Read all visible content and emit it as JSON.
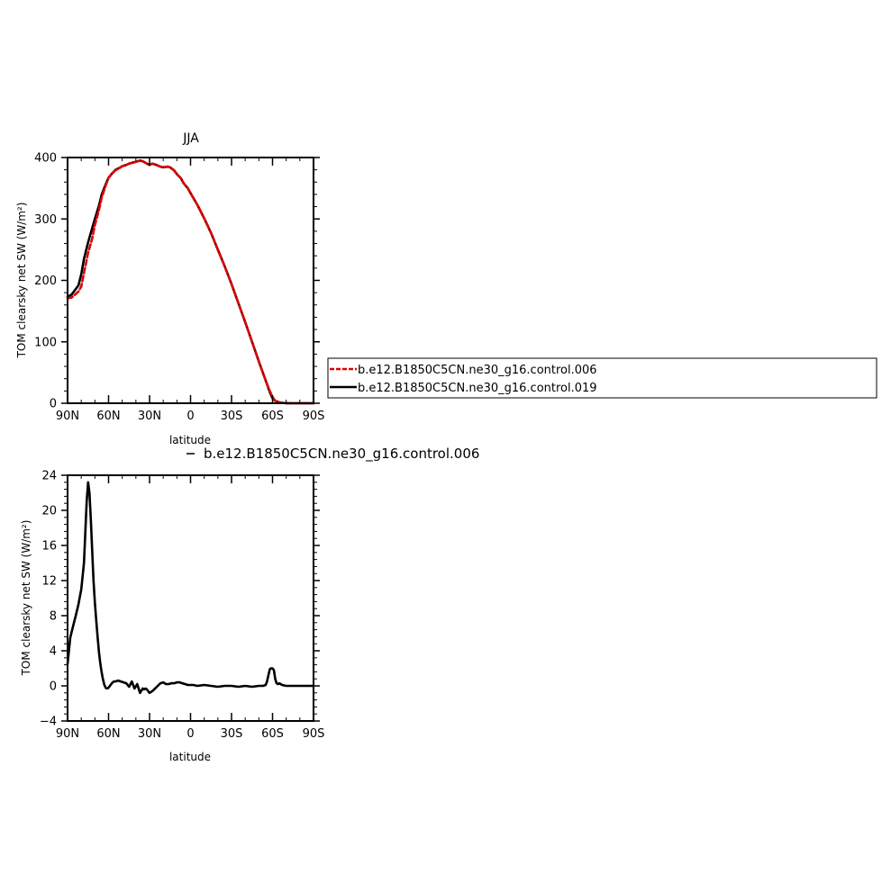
{
  "chart_data": [
    {
      "type": "line",
      "title": "JJA",
      "xlabel": "latitude",
      "ylabel": "TOM clearsky net SW (W/m²)",
      "xlim": [
        90,
        -90
      ],
      "ylim": [
        0,
        400
      ],
      "x_ticks": [
        90,
        60,
        30,
        0,
        -30,
        -60,
        -90
      ],
      "x_tick_labels": [
        "90N",
        "60N",
        "30N",
        "0",
        "30S",
        "60S",
        "90S"
      ],
      "y_ticks": [
        0,
        100,
        200,
        300,
        400
      ],
      "y_tick_labels": [
        "0",
        "100",
        "200",
        "300",
        "400"
      ],
      "grid": false,
      "legend": "right",
      "series": [
        {
          "name": "b.e12.B1850C5CN.ne30_g16.control.006",
          "color": "#e00000",
          "dash": "dashed",
          "x": [
            90,
            87,
            85,
            82,
            80,
            78,
            75,
            72,
            70,
            67,
            65,
            62,
            60,
            57,
            55,
            52,
            50,
            47,
            45,
            42,
            40,
            37,
            35,
            32,
            30,
            28,
            25,
            22,
            20,
            17,
            15,
            12,
            10,
            7,
            5,
            2,
            0,
            -5,
            -10,
            -15,
            -20,
            -25,
            -30,
            -35,
            -40,
            -45,
            -50,
            -55,
            -58,
            -60,
            -62,
            -65,
            -68,
            -70,
            -75,
            -80,
            -85,
            -90
          ],
          "y": [
            171,
            172,
            176,
            182,
            190,
            212,
            245,
            268,
            290,
            315,
            335,
            355,
            367,
            375,
            379,
            383,
            386,
            388,
            390,
            392,
            393,
            395,
            394,
            390,
            388,
            390,
            388,
            385,
            384,
            385,
            384,
            379,
            373,
            366,
            358,
            350,
            342,
            323,
            301,
            277,
            250,
            223,
            194,
            163,
            132,
            100,
            68,
            37,
            20,
            10,
            4,
            1.5,
            0.5,
            0.1,
            0,
            0,
            0,
            0
          ]
        },
        {
          "name": "b.e12.B1850C5CN.ne30_g16.control.019",
          "color": "#000000",
          "dash": "solid",
          "x": [
            90,
            87,
            85,
            82,
            80,
            78,
            75,
            72,
            70,
            67,
            65,
            62,
            60,
            57,
            55,
            52,
            50,
            47,
            45,
            42,
            40,
            37,
            35,
            32,
            30,
            28,
            25,
            22,
            20,
            17,
            15,
            12,
            10,
            7,
            5,
            2,
            0,
            -5,
            -10,
            -15,
            -20,
            -25,
            -30,
            -35,
            -40,
            -45,
            -50,
            -55,
            -58,
            -60,
            -62,
            -65,
            -68,
            -70,
            -75,
            -80,
            -85,
            -90
          ],
          "y": [
            173,
            177,
            183,
            192,
            210,
            235,
            262,
            285,
            300,
            322,
            340,
            357,
            367,
            375,
            380,
            383,
            386,
            388,
            390,
            392,
            393,
            395,
            394,
            390,
            388,
            390,
            388,
            385,
            384,
            385,
            384,
            379,
            373,
            366,
            358,
            350,
            342,
            323,
            301,
            277,
            250,
            223,
            194,
            163,
            132,
            100,
            68,
            37,
            18,
            8,
            4,
            1.5,
            0.5,
            0.1,
            0,
            0,
            0,
            0
          ]
        }
      ]
    },
    {
      "type": "line",
      "title": "b.e12.B1850C5CN.ne30_g16.control.006",
      "xlabel": "latitude",
      "ylabel": "TOM clearsky net SW (W/m²)",
      "xlim": [
        90,
        -90
      ],
      "ylim": [
        -4,
        24
      ],
      "x_ticks": [
        90,
        60,
        30,
        0,
        -30,
        -60,
        -90
      ],
      "x_tick_labels": [
        "90N",
        "60N",
        "30N",
        "0",
        "30S",
        "60S",
        "90S"
      ],
      "y_ticks": [
        -4,
        0,
        4,
        8,
        12,
        16,
        20,
        24
      ],
      "y_tick_labels": [
        "−4",
        "0",
        "4",
        "8",
        "12",
        "16",
        "20",
        "24"
      ],
      "grid": false,
      "series": [
        {
          "color": "#000000",
          "dash": "solid",
          "x": [
            90,
            89,
            88,
            86,
            84,
            82,
            80,
            78,
            77,
            76,
            75,
            74,
            73,
            72,
            71,
            70,
            69,
            68,
            67,
            66,
            65,
            64,
            63,
            62,
            61,
            60,
            59,
            58,
            57,
            56,
            55,
            53,
            51,
            49,
            47,
            45,
            43,
            41,
            39,
            37,
            35,
            34,
            33,
            32,
            31,
            30,
            28,
            26,
            24,
            22,
            20,
            18,
            16,
            14,
            12,
            10,
            8,
            6,
            4,
            2,
            0,
            -2,
            -5,
            -10,
            -15,
            -20,
            -25,
            -30,
            -35,
            -40,
            -45,
            -50,
            -53,
            -55,
            -56,
            -57,
            -58,
            -59,
            -60,
            -61,
            -62,
            -63,
            -64,
            -65,
            -67,
            -70,
            -75,
            -80,
            -85,
            -90
          ],
          "y": [
            2.5,
            4,
            5.5,
            6.8,
            8,
            9.3,
            11,
            14,
            17.5,
            21,
            23.2,
            22,
            19,
            15.5,
            12,
            9.5,
            7.5,
            5.5,
            3.8,
            2.5,
            1.5,
            0.7,
            0.1,
            -0.25,
            -0.3,
            -0.2,
            0,
            0.2,
            0.4,
            0.5,
            0.5,
            0.6,
            0.5,
            0.4,
            0.3,
            -0.1,
            0.5,
            -0.3,
            0.2,
            -0.8,
            -0.3,
            -0.4,
            -0.3,
            -0.4,
            -0.6,
            -0.8,
            -0.6,
            -0.3,
            0,
            0.3,
            0.4,
            0.2,
            0.2,
            0.3,
            0.3,
            0.4,
            0.4,
            0.3,
            0.2,
            0.1,
            0.1,
            0.1,
            0,
            0.1,
            0,
            -0.1,
            0,
            0,
            -0.1,
            0,
            -0.1,
            0,
            0,
            0.1,
            0.5,
            1.2,
            1.9,
            2,
            2,
            1.8,
            0.8,
            0.3,
            0.2,
            0.3,
            0.1,
            0,
            0,
            0,
            0,
            0
          ]
        }
      ]
    }
  ]
}
